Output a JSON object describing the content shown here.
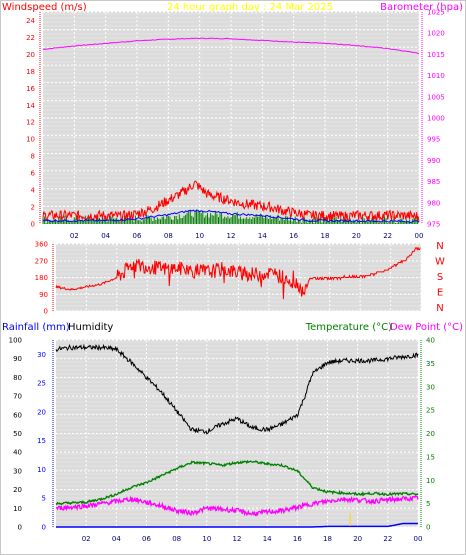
{
  "header": {
    "windspeed_label": "Windspeed (m/s)",
    "title": "24 hour graph day : 24 Mar 2025",
    "barometer_label": "Barometer (hpa)",
    "rainfall_label": "Rainfall (mm)",
    "humidity_label": "Humidity",
    "temperature_label": "Temperature (°C)",
    "dewpoint_label": "Dew Point (°C)"
  },
  "colors": {
    "wind_axis": "#ff0000",
    "title": "#ffff00",
    "barometer": "#ff00ff",
    "rain": "#0000ff",
    "temperature": "#008000",
    "humidity": "#000000",
    "dewpoint": "#ff00ff",
    "gust": "#ff0000",
    "avg_wind": "#0000ff",
    "low_wind": "#008000",
    "plot_bg": "#e0e0e0"
  },
  "chart_data": [
    {
      "type": "line",
      "name": "wind-barometer",
      "x_ticks": [
        "02",
        "04",
        "06",
        "08",
        "10",
        "12",
        "14",
        "16",
        "18",
        "20",
        "22",
        "00"
      ],
      "y_left_ticks": [
        "0",
        "2",
        "4",
        "6",
        "8",
        "10",
        "12",
        "14",
        "16",
        "18",
        "20",
        "22",
        "24"
      ],
      "y_right_ticks": [
        "975",
        "980",
        "985",
        "990",
        "995",
        "1000",
        "1005",
        "1010",
        "1015",
        "1020",
        "1025"
      ],
      "ylim_left": [
        0,
        25
      ],
      "ylim_right": [
        975,
        1025
      ],
      "x_range_hours": [
        0,
        24
      ],
      "series": [
        {
          "key": "barometer",
          "axis": "right",
          "points": [
            [
              0,
              1016.2
            ],
            [
              2,
              1017.0
            ],
            [
              4,
              1017.6
            ],
            [
              6,
              1018.2
            ],
            [
              8,
              1018.6
            ],
            [
              10,
              1018.8
            ],
            [
              12,
              1018.7
            ],
            [
              14,
              1018.3
            ],
            [
              16,
              1017.9
            ],
            [
              18,
              1017.6
            ],
            [
              20,
              1017.1
            ],
            [
              22,
              1016.4
            ],
            [
              24,
              1015.3
            ]
          ]
        },
        {
          "key": "gust",
          "axis": "left",
          "points": [
            [
              0,
              1.0
            ],
            [
              2,
              1.0
            ],
            [
              4,
              1.0
            ],
            [
              5,
              0.9
            ],
            [
              6,
              1.2
            ],
            [
              7,
              1.8
            ],
            [
              8,
              2.8
            ],
            [
              9,
              3.8
            ],
            [
              9.7,
              4.8
            ],
            [
              10.5,
              3.5
            ],
            [
              11.5,
              3.0
            ],
            [
              12.5,
              2.5
            ],
            [
              13.5,
              2.2
            ],
            [
              14.5,
              2.0
            ],
            [
              15.5,
              1.5
            ],
            [
              16.5,
              1.2
            ],
            [
              17,
              1.0
            ],
            [
              18,
              1.0
            ],
            [
              19,
              0.9
            ],
            [
              20,
              1.0
            ],
            [
              21,
              1.0
            ],
            [
              22,
              1.0
            ],
            [
              23,
              1.0
            ],
            [
              24,
              0.9
            ]
          ]
        },
        {
          "key": "avg_wind",
          "axis": "left",
          "points": [
            [
              0,
              0.4
            ],
            [
              4,
              0.4
            ],
            [
              6,
              0.6
            ],
            [
              8,
              1.1
            ],
            [
              9.5,
              1.6
            ],
            [
              10.5,
              1.5
            ],
            [
              12,
              1.2
            ],
            [
              14,
              1.0
            ],
            [
              16,
              0.6
            ],
            [
              17,
              0.4
            ],
            [
              24,
              0.3
            ]
          ]
        },
        {
          "key": "low_wind",
          "axis": "left",
          "points": [
            [
              0,
              0.1
            ],
            [
              6,
              0.2
            ],
            [
              8,
              0.4
            ],
            [
              9.5,
              0.8
            ],
            [
              11,
              0.7
            ],
            [
              13,
              0.5
            ],
            [
              15,
              0.3
            ],
            [
              17,
              0.1
            ],
            [
              24,
              0.1
            ]
          ]
        }
      ]
    },
    {
      "type": "line",
      "name": "wind-direction",
      "y_left_ticks": [
        "0",
        "90",
        "180",
        "270",
        "360"
      ],
      "y_right_ticks": [
        "N",
        "W",
        "S",
        "E",
        "N"
      ],
      "ylim": [
        0,
        360
      ],
      "x_range_hours": [
        0,
        24
      ],
      "series": [
        {
          "key": "direction",
          "points": [
            [
              0,
              130
            ],
            [
              1,
              115
            ],
            [
              2,
              130
            ],
            [
              3,
              145
            ],
            [
              4,
              180
            ],
            [
              4.5,
              210
            ],
            [
              5,
              250
            ],
            [
              6,
              240
            ],
            [
              7,
              225
            ],
            [
              8,
              230
            ],
            [
              9,
              215
            ],
            [
              10,
              210
            ],
            [
              11,
              225
            ],
            [
              12,
              205
            ],
            [
              13,
              195
            ],
            [
              14,
              205
            ],
            [
              15,
              180
            ],
            [
              16,
              140
            ],
            [
              16.3,
              90
            ],
            [
              16.7,
              175
            ],
            [
              17.5,
              175
            ],
            [
              19,
              180
            ],
            [
              20,
              185
            ],
            [
              21,
              200
            ],
            [
              22,
              230
            ],
            [
              23,
              275
            ],
            [
              23.6,
              330
            ],
            [
              24,
              340
            ]
          ]
        }
      ]
    },
    {
      "type": "line",
      "name": "rain-humidity-temperature",
      "x_ticks": [
        "02",
        "04",
        "06",
        "08",
        "10",
        "12",
        "14",
        "16",
        "18",
        "20",
        "22",
        "00"
      ],
      "y_left_ticks": [
        "0",
        "10",
        "20",
        "30",
        "40",
        "50",
        "60",
        "70",
        "80",
        "90",
        "100"
      ],
      "y_rain_ticks": [
        "0",
        "5",
        "10",
        "15",
        "20",
        "25",
        "30"
      ],
      "y_right_ticks": [
        "0",
        "5",
        "10",
        "15",
        "20",
        "25",
        "30",
        "35",
        "40"
      ],
      "ylim_humidity": [
        0,
        100
      ],
      "ylim_rain": [
        0,
        30
      ],
      "ylim_temperature": [
        0,
        40
      ],
      "x_range_hours": [
        0,
        24
      ],
      "series": [
        {
          "key": "humidity",
          "points": [
            [
              0,
              95
            ],
            [
              1,
              96
            ],
            [
              3,
              96
            ],
            [
              4,
              95
            ],
            [
              5,
              88
            ],
            [
              6,
              80
            ],
            [
              7,
              72
            ],
            [
              8,
              62
            ],
            [
              9,
              52
            ],
            [
              10,
              51
            ],
            [
              11,
              55
            ],
            [
              12,
              58
            ],
            [
              13,
              53
            ],
            [
              14,
              52
            ],
            [
              15,
              55
            ],
            [
              16,
              60
            ],
            [
              16.5,
              70
            ],
            [
              17,
              82
            ],
            [
              18,
              88
            ],
            [
              19,
              89
            ],
            [
              20,
              89
            ],
            [
              21,
              89
            ],
            [
              22,
              90
            ],
            [
              23,
              91
            ],
            [
              24,
              92
            ]
          ]
        },
        {
          "key": "temperature",
          "points": [
            [
              0,
              5.0
            ],
            [
              2,
              5.3
            ],
            [
              3,
              6.0
            ],
            [
              4,
              7.0
            ],
            [
              5,
              8.5
            ],
            [
              6,
              9.5
            ],
            [
              7,
              11.0
            ],
            [
              8,
              12.5
            ],
            [
              9,
              13.8
            ],
            [
              10,
              13.6
            ],
            [
              11,
              13.2
            ],
            [
              12,
              13.8
            ],
            [
              13,
              14.0
            ],
            [
              14,
              13.5
            ],
            [
              15,
              13.2
            ],
            [
              16,
              12.0
            ],
            [
              17,
              8.5
            ],
            [
              18,
              7.5
            ],
            [
              19,
              7.3
            ],
            [
              20,
              7.0
            ],
            [
              21,
              7.2
            ],
            [
              22,
              7.0
            ],
            [
              23,
              7.1
            ],
            [
              24,
              7.0
            ]
          ]
        },
        {
          "key": "dewpoint",
          "points": [
            [
              0,
              4.0
            ],
            [
              2,
              4.5
            ],
            [
              4,
              5.5
            ],
            [
              5,
              6.0
            ],
            [
              6,
              5.3
            ],
            [
              7,
              4.5
            ],
            [
              8,
              3.5
            ],
            [
              9,
              3.0
            ],
            [
              10,
              4.0
            ],
            [
              11,
              3.8
            ],
            [
              12,
              3.5
            ],
            [
              13,
              2.8
            ],
            [
              14,
              3.2
            ],
            [
              15,
              3.5
            ],
            [
              16,
              4.2
            ],
            [
              17,
              5.0
            ],
            [
              18,
              5.5
            ],
            [
              19,
              6.0
            ],
            [
              20,
              5.8
            ],
            [
              21,
              5.5
            ],
            [
              22,
              5.8
            ],
            [
              23,
              6.0
            ],
            [
              24,
              6.2
            ]
          ]
        },
        {
          "key": "rain",
          "points": [
            [
              0,
              0
            ],
            [
              17,
              0
            ],
            [
              18,
              0.1
            ],
            [
              22,
              0.1
            ],
            [
              23,
              0.6
            ],
            [
              24,
              0.6
            ]
          ]
        }
      ]
    }
  ]
}
